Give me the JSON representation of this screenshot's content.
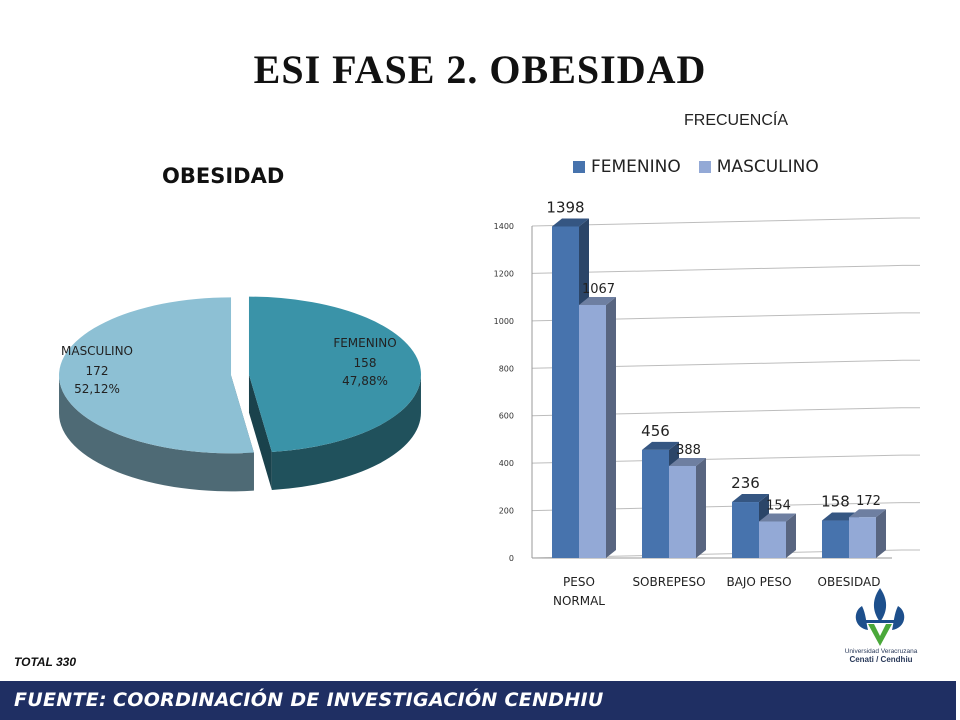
{
  "title": "ESI FASE 2. OBESIDAD",
  "total": "TOTAL  330",
  "footer": {
    "label": "FUENTE:",
    "text": "COORDINACIÓN DE INVESTIGACIÓN CENDHIU"
  },
  "logo": {
    "line1": "Universidad Veracruzana",
    "line2": "Cenati / Cendhiu"
  },
  "chart_data": [
    {
      "type": "pie",
      "title": "OBESIDAD",
      "slices": [
        {
          "label": "FEMENINO",
          "value": 158,
          "percent": "47,88%",
          "color": "#3a93a8"
        },
        {
          "label": "MASCULINO",
          "value": 172,
          "percent": "52,12%",
          "color": "#8dc0d4"
        }
      ]
    },
    {
      "type": "bar",
      "title": "FRECUENCÍA",
      "categories": [
        "PESO NORMAL",
        "SOBREPESO",
        "BAJO PESO",
        "OBESIDAD"
      ],
      "category_labels": [
        [
          "PESO",
          "NORMAL"
        ],
        [
          "SOBREPESO"
        ],
        [
          "BAJO PESO"
        ],
        [
          "OBESIDAD"
        ]
      ],
      "series": [
        {
          "name": "FEMENINO",
          "values": [
            1398,
            456,
            236,
            158
          ],
          "color": "#4773ad"
        },
        {
          "name": "MASCULINO",
          "values": [
            1067,
            388,
            154,
            172
          ],
          "color": "#93a9d6"
        }
      ],
      "ylim": [
        0,
        1400
      ],
      "yticks": [
        0,
        200,
        400,
        600,
        800,
        1000,
        1200,
        1400
      ],
      "grid": true,
      "legend": "top"
    }
  ]
}
